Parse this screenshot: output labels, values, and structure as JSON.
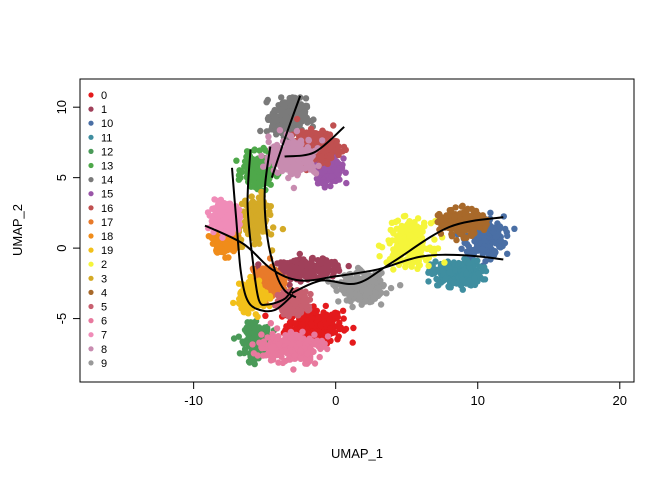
{
  "chart_data": {
    "type": "scatter",
    "xlabel": "UMAP_1",
    "ylabel": "UMAP_2",
    "xlim": [
      -18,
      21
    ],
    "ylim": [
      -9.5,
      12
    ],
    "x_ticks": [
      -10,
      0,
      10,
      20
    ],
    "y_ticks": [
      -5,
      0,
      5,
      10
    ],
    "x_tick_labels": [
      "-10",
      "0",
      "10",
      "20"
    ],
    "y_tick_labels": [
      "-5",
      "0",
      "5",
      "10"
    ],
    "legend_position": "top-left",
    "grid": false,
    "clusters": [
      {
        "name": "0",
        "color": "#e41a1c",
        "center": [
          -1.5,
          -5.5
        ],
        "spread": [
          1.8,
          1.1
        ]
      },
      {
        "name": "1",
        "color": "#a0405a",
        "center": [
          -2.0,
          -1.5
        ],
        "spread": [
          2.2,
          0.6
        ]
      },
      {
        "name": "10",
        "color": "#4a6fa5",
        "center": [
          10.5,
          0.8
        ],
        "spread": [
          1.2,
          1.3
        ]
      },
      {
        "name": "11",
        "color": "#3f8ea0",
        "center": [
          8.5,
          -1.8
        ],
        "spread": [
          1.6,
          0.8
        ]
      },
      {
        "name": "12",
        "color": "#4a9a58",
        "center": [
          -5.5,
          -6.5
        ],
        "spread": [
          0.8,
          1.0
        ]
      },
      {
        "name": "13",
        "color": "#4ea84a",
        "center": [
          -5.5,
          5.5
        ],
        "spread": [
          0.9,
          1.0
        ]
      },
      {
        "name": "14",
        "color": "#7a7a7a",
        "center": [
          -3.3,
          9.3
        ],
        "spread": [
          1.1,
          1.2
        ]
      },
      {
        "name": "15",
        "color": "#9a55a8",
        "center": [
          -0.5,
          5.8
        ],
        "spread": [
          0.8,
          1.0
        ]
      },
      {
        "name": "16",
        "color": "#c05050",
        "center": [
          -1.3,
          7.2
        ],
        "spread": [
          1.3,
          1.0
        ]
      },
      {
        "name": "17",
        "color": "#e87a2a",
        "center": [
          -4.8,
          -2.5
        ],
        "spread": [
          0.9,
          0.9
        ]
      },
      {
        "name": "18",
        "color": "#f08c1a",
        "center": [
          -7.8,
          0.5
        ],
        "spread": [
          0.7,
          0.7
        ]
      },
      {
        "name": "19",
        "color": "#f2c01a",
        "center": [
          -5.8,
          -3.5
        ],
        "spread": [
          0.9,
          0.8
        ]
      },
      {
        "name": "2",
        "color": "#f5f53a",
        "center": [
          5.2,
          0.3
        ],
        "spread": [
          1.4,
          1.4
        ]
      },
      {
        "name": "3",
        "color": "#d4aa26",
        "center": [
          -5.6,
          2.0
        ],
        "spread": [
          0.8,
          1.3
        ]
      },
      {
        "name": "4",
        "color": "#a8692a",
        "center": [
          8.8,
          1.8
        ],
        "spread": [
          1.3,
          0.8
        ]
      },
      {
        "name": "5",
        "color": "#c86070",
        "center": [
          -3.0,
          -3.8
        ],
        "spread": [
          0.9,
          0.7
        ]
      },
      {
        "name": "6",
        "color": "#e8799e",
        "center": [
          -3.2,
          -7.0
        ],
        "spread": [
          2.0,
          1.0
        ]
      },
      {
        "name": "7",
        "color": "#f08cb8",
        "center": [
          -7.8,
          2.2
        ],
        "spread": [
          0.9,
          0.8
        ]
      },
      {
        "name": "8",
        "color": "#c88cb0",
        "center": [
          -3.0,
          6.5
        ],
        "spread": [
          1.5,
          1.2
        ]
      },
      {
        "name": "9",
        "color": "#999999",
        "center": [
          1.8,
          -2.8
        ],
        "spread": [
          1.4,
          0.9
        ]
      }
    ],
    "trajectories": [
      [
        [
          -9.2,
          1.6
        ],
        [
          -6.5,
          0.3
        ],
        [
          -4.5,
          -1.5
        ],
        [
          -2.5,
          -2.3
        ],
        [
          0.0,
          -2.0
        ],
        [
          3.0,
          -1.5
        ],
        [
          6.0,
          -0.6
        ],
        [
          9.0,
          -0.5
        ],
        [
          11.8,
          -0.8
        ]
      ],
      [
        [
          -3.6,
          6.5
        ],
        [
          -1.5,
          6.8
        ],
        [
          0.6,
          8.6
        ]
      ],
      [
        [
          -4.5,
          5.0
        ],
        [
          -3.5,
          8.0
        ],
        [
          -2.5,
          10.8
        ]
      ],
      [
        [
          -7.3,
          5.7
        ],
        [
          -7.0,
          2.0
        ],
        [
          -6.7,
          -1.5
        ],
        [
          -6.3,
          -3.5
        ],
        [
          -5.6,
          -4.3
        ],
        [
          -4.3,
          -4.4
        ],
        [
          -3.0,
          -3.3
        ]
      ],
      [
        [
          -6.0,
          7.0
        ],
        [
          -6.2,
          3.0
        ],
        [
          -5.8,
          -1.2
        ],
        [
          -5.4,
          -3.7
        ],
        [
          -4.8,
          -4.0
        ],
        [
          -3.6,
          -3.6
        ],
        [
          -3.0,
          -2.8
        ]
      ],
      [
        [
          -4.6,
          7.2
        ],
        [
          -5.0,
          4.0
        ],
        [
          -4.8,
          0.7
        ],
        [
          -4.2,
          -1.8
        ],
        [
          -3.6,
          -3.0
        ],
        [
          -2.8,
          -3.5
        ]
      ],
      [
        [
          -3.1,
          -3.2
        ],
        [
          -1.0,
          -2.3
        ],
        [
          1.5,
          -2.5
        ],
        [
          4.0,
          -1.0
        ],
        [
          8.0,
          1.5
        ],
        [
          11.8,
          2.2
        ]
      ]
    ]
  }
}
